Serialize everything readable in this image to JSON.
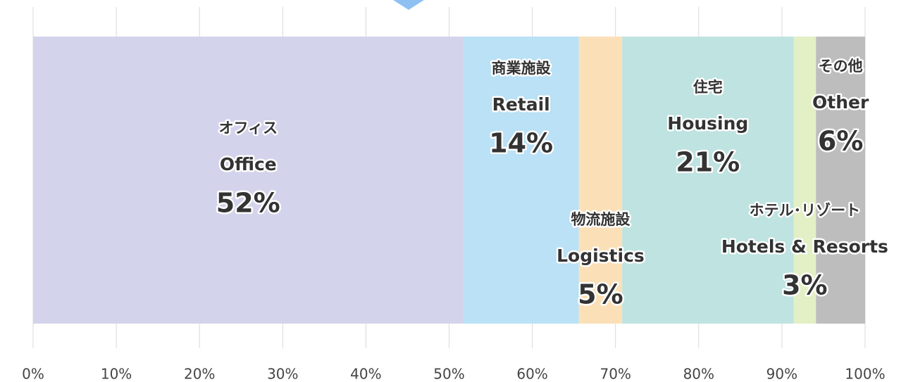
{
  "chart_data": {
    "type": "bar",
    "orientation": "horizontal",
    "stacked": true,
    "series": [
      {
        "name": "オフィス",
        "name_en": "Office",
        "color": "#d3d3ec",
        "values": [
          51.7
        ],
        "value_labels": [
          "52%"
        ]
      },
      {
        "name": "商業施設",
        "name_en": "Retail",
        "color": "#bae1f5",
        "values": [
          13.9
        ],
        "value_labels": [
          "14%"
        ]
      },
      {
        "name": "物流施設",
        "name_en": "Logistics",
        "color": "#fbe0b7",
        "values": [
          5.2
        ],
        "value_labels": [
          "5%"
        ]
      },
      {
        "name": "住宅",
        "name_en": "Housing",
        "color": "#bee3e0",
        "values": [
          20.6
        ],
        "value_labels": [
          "21%"
        ]
      },
      {
        "name": "ホテル･リゾート",
        "name_en": "Hotels & Resorts",
        "color": "#e3efc5",
        "values": [
          2.7
        ],
        "value_labels": [
          "3%"
        ]
      },
      {
        "name": "その他",
        "name_en": "Other",
        "color": "#bdbdbd",
        "values": [
          5.9
        ],
        "value_labels": [
          "6%"
        ]
      }
    ],
    "xlim": [
      0,
      100
    ],
    "xticks": [
      {
        "value": 0,
        "label": "0%"
      },
      {
        "value": 10,
        "label": "10%"
      },
      {
        "value": 20,
        "label": "20%"
      },
      {
        "value": 30,
        "label": "30%"
      },
      {
        "value": 40,
        "label": "40%"
      },
      {
        "value": 50,
        "label": "50%"
      },
      {
        "value": 60,
        "label": "60%"
      },
      {
        "value": 70,
        "label": "70%"
      },
      {
        "value": 80,
        "label": "80%"
      },
      {
        "value": 90,
        "label": "90%"
      },
      {
        "value": 100,
        "label": "100%"
      }
    ],
    "grid": true
  }
}
